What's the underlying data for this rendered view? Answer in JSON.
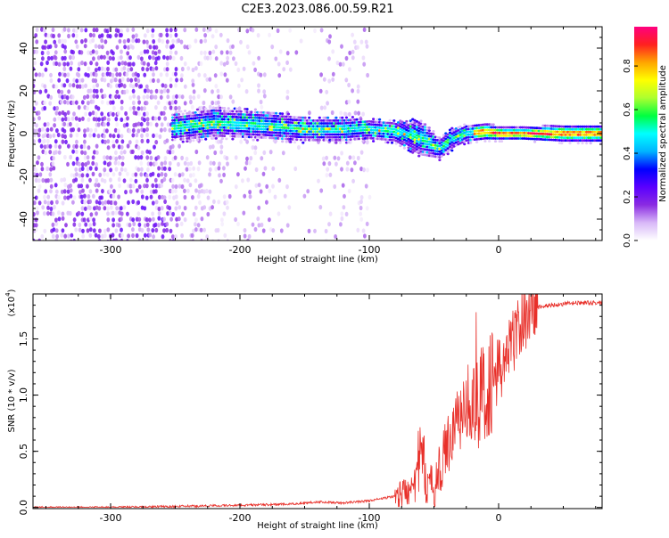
{
  "chart_data": [
    {
      "type": "heatmap",
      "title": "C2E3.2023.086.00.59.R21",
      "xlabel": "Height of straight line (km)",
      "ylabel": "Frequency (Hz)",
      "xlim": [
        -360,
        80
      ],
      "ylim": [
        -50,
        50
      ],
      "xticks": [
        -300,
        -200,
        -100,
        0
      ],
      "yticks": [
        -40,
        -20,
        0,
        20,
        40
      ],
      "colorbar": {
        "label": "Normalized spectral amplitude",
        "range": [
          0.0,
          0.98
        ],
        "ticks": [
          "0.0",
          "0.2",
          "0.4",
          "0.6",
          "0.8"
        ],
        "colormap": [
          "#ffffff",
          "#d8b8f8",
          "#8a2be2",
          "#5a00ff",
          "#0000ff",
          "#00b4ff",
          "#00ffff",
          "#00ff40",
          "#adff2f",
          "#ffff00",
          "#ffa500",
          "#ff2020",
          "#ff007f"
        ]
      },
      "signal_track": {
        "description_points_x": [
          -250,
          -220,
          -180,
          -150,
          -120,
          -100,
          -80,
          -60,
          -45,
          -35,
          -25,
          -10,
          0,
          20,
          50,
          80
        ],
        "center_frequency": [
          3,
          5,
          4,
          2,
          2,
          2,
          1,
          -2,
          -7,
          -2,
          0,
          1,
          0,
          0,
          0,
          0
        ],
        "half_width": [
          4,
          4,
          4,
          3.5,
          3.5,
          3,
          3,
          5,
          3,
          3,
          2.5,
          2.5,
          2,
          2,
          2.5,
          2.5
        ]
      }
    },
    {
      "type": "line",
      "title": "",
      "xlabel": "Height of straight line (km)",
      "ylabel": "SNR (10 * v/v)",
      "y_multiplier_label": "(x10",
      "y_multiplier_exp": "4",
      "xlim": [
        -360,
        80
      ],
      "ylim": [
        -0.01,
        1.9
      ],
      "xticks": [
        -300,
        -200,
        -100,
        0
      ],
      "yticks": [
        "0.0",
        "0.5",
        "1.0",
        "1.5"
      ],
      "series": [
        {
          "color": "#e8302a",
          "x": [
            -360,
            -300,
            -250,
            -200,
            -160,
            -140,
            -120,
            -100,
            -90,
            -80,
            -70,
            -65,
            -60,
            -55,
            -50,
            -45,
            -40,
            -35,
            -30,
            -25,
            -20,
            -15,
            -10,
            -5,
            0,
            5,
            10,
            15,
            20,
            25,
            30,
            40,
            50,
            60,
            70,
            80
          ],
          "y": [
            0.0,
            0.0,
            0.01,
            0.02,
            0.03,
            0.05,
            0.04,
            0.06,
            0.08,
            0.1,
            0.15,
            0.3,
            0.45,
            0.25,
            0.15,
            0.35,
            0.55,
            0.7,
            0.85,
            0.9,
            1.0,
            0.95,
            1.05,
            1.15,
            1.2,
            1.3,
            1.45,
            1.6,
            1.7,
            1.75,
            1.78,
            1.8,
            1.81,
            1.82,
            1.82,
            1.82
          ]
        }
      ]
    }
  ]
}
